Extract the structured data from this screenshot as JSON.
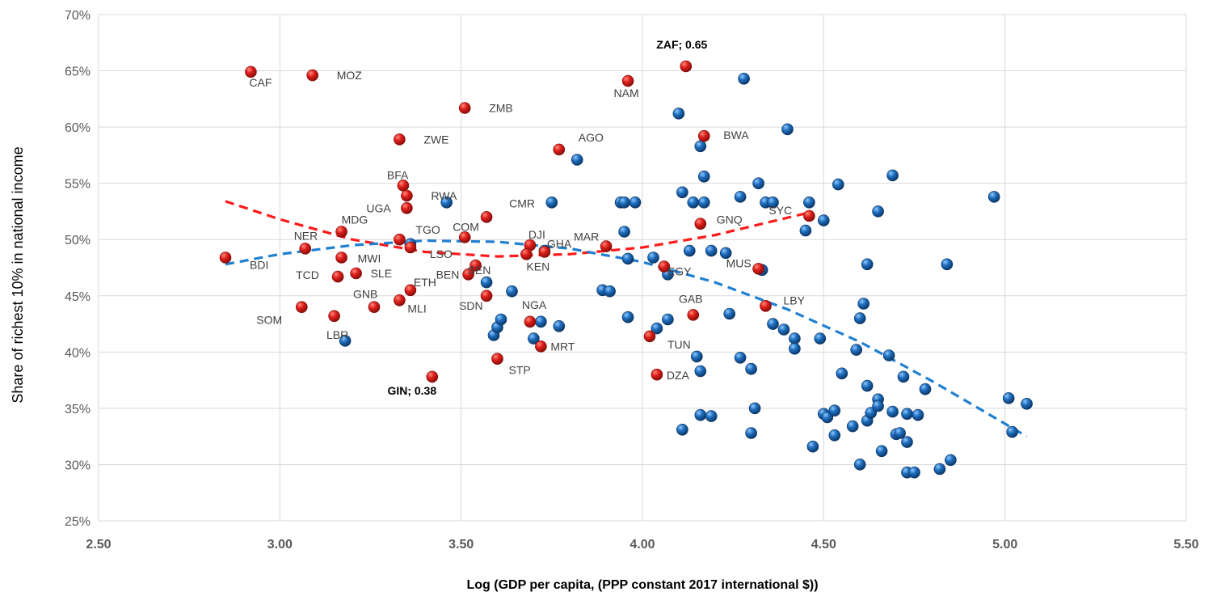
{
  "chart_data": {
    "type": "scatter",
    "title": "",
    "xlabel": "Log (GDP per capita, (PPP constant 2017 international $))",
    "ylabel": "Share of richest 10% in national income",
    "xlim": [
      2.5,
      5.5
    ],
    "ylim": [
      0.25,
      0.7
    ],
    "x_ticks": [
      "2.50",
      "3.00",
      "3.50",
      "4.00",
      "4.50",
      "5.00",
      "5.50"
    ],
    "y_ticks": [
      "25%",
      "30%",
      "35%",
      "40%",
      "45%",
      "50%",
      "55%",
      "60%",
      "65%",
      "70%"
    ],
    "grid": true,
    "colors": {
      "africa": "#e0201b",
      "others": "#1f6fbf",
      "africa_trend": "#ff1a1a",
      "others_trend": "#1f7fd0",
      "grid": "#d9d9d9"
    },
    "series": [
      {
        "key": "africa",
        "points": [
          {
            "label": "CAF",
            "x": 2.92,
            "y": 0.649
          },
          {
            "label": "MOZ",
            "x": 3.09,
            "y": 0.646
          },
          {
            "label": "ZMB",
            "x": 3.51,
            "y": 0.617
          },
          {
            "label": "NAM",
            "x": 3.96,
            "y": 0.641
          },
          {
            "label": "ZAF; 0.65",
            "x": 4.12,
            "y": 0.654
          },
          {
            "label": "ZWE",
            "x": 3.33,
            "y": 0.589
          },
          {
            "label": "AGO",
            "x": 3.77,
            "y": 0.58
          },
          {
            "label": "BWA",
            "x": 4.17,
            "y": 0.592
          },
          {
            "label": "BFA",
            "x": 3.34,
            "y": 0.548
          },
          {
            "label": "RWA",
            "x": 3.35,
            "y": 0.539
          },
          {
            "label": "UGA",
            "x": 3.35,
            "y": 0.528
          },
          {
            "label": "CMR",
            "x": 3.57,
            "y": 0.52
          },
          {
            "label": "MDG",
            "x": 3.17,
            "y": 0.507
          },
          {
            "label": "GNQ",
            "x": 4.16,
            "y": 0.514
          },
          {
            "label": "SYC",
            "x": 4.46,
            "y": 0.521
          },
          {
            "label": "NER",
            "x": 3.07,
            "y": 0.492
          },
          {
            "label": "TGO",
            "x": 3.33,
            "y": 0.5
          },
          {
            "label": "COM",
            "x": 3.51,
            "y": 0.502
          },
          {
            "label": "DJI",
            "x": 3.69,
            "y": 0.495
          },
          {
            "label": "MAR",
            "x": 3.9,
            "y": 0.494
          },
          {
            "label": "BDI",
            "x": 2.85,
            "y": 0.484
          },
          {
            "label": "MWI",
            "x": 3.17,
            "y": 0.484
          },
          {
            "label": "LSO",
            "x": 3.36,
            "y": 0.493
          },
          {
            "label": "GHA",
            "x": 3.73,
            "y": 0.489
          },
          {
            "label": "KEN",
            "x": 3.68,
            "y": 0.487
          },
          {
            "label": "SEN",
            "x": 3.54,
            "y": 0.477
          },
          {
            "label": "BEN",
            "x": 3.52,
            "y": 0.469
          },
          {
            "label": "TCD",
            "x": 3.16,
            "y": 0.467
          },
          {
            "label": "SLE",
            "x": 3.21,
            "y": 0.47
          },
          {
            "label": "ETH",
            "x": 3.36,
            "y": 0.455
          },
          {
            "label": "EGY",
            "x": 4.06,
            "y": 0.476
          },
          {
            "label": "MUS",
            "x": 4.32,
            "y": 0.474
          },
          {
            "label": "SDN",
            "x": 3.57,
            "y": 0.45
          },
          {
            "label": "SOM",
            "x": 3.06,
            "y": 0.44
          },
          {
            "label": "GNB",
            "x": 3.26,
            "y": 0.44
          },
          {
            "label": "MLI",
            "x": 3.33,
            "y": 0.446
          },
          {
            "label": "LBR",
            "x": 3.15,
            "y": 0.432
          },
          {
            "label": "NGA",
            "x": 3.69,
            "y": 0.427
          },
          {
            "label": "GAB",
            "x": 4.14,
            "y": 0.433
          },
          {
            "label": "LBY",
            "x": 4.34,
            "y": 0.441
          },
          {
            "label": "TUN",
            "x": 4.02,
            "y": 0.414
          },
          {
            "label": "MRT",
            "x": 3.72,
            "y": 0.405
          },
          {
            "label": "STP",
            "x": 3.6,
            "y": 0.394
          },
          {
            "label": "DZA",
            "x": 4.04,
            "y": 0.38
          },
          {
            "label": "GIN; 0.38",
            "x": 3.42,
            "y": 0.378
          }
        ]
      },
      {
        "key": "others",
        "points": [
          {
            "x": 3.18,
            "y": 0.41
          },
          {
            "x": 3.36,
            "y": 0.496
          },
          {
            "x": 3.46,
            "y": 0.533
          },
          {
            "x": 3.57,
            "y": 0.462
          },
          {
            "x": 3.59,
            "y": 0.415
          },
          {
            "x": 3.6,
            "y": 0.422
          },
          {
            "x": 3.61,
            "y": 0.429
          },
          {
            "x": 3.64,
            "y": 0.454
          },
          {
            "x": 3.7,
            "y": 0.412
          },
          {
            "x": 3.72,
            "y": 0.427
          },
          {
            "x": 3.73,
            "y": 0.49
          },
          {
            "x": 3.75,
            "y": 0.533
          },
          {
            "x": 3.77,
            "y": 0.423
          },
          {
            "x": 3.82,
            "y": 0.571
          },
          {
            "x": 3.89,
            "y": 0.455
          },
          {
            "x": 3.91,
            "y": 0.454
          },
          {
            "x": 3.94,
            "y": 0.533
          },
          {
            "x": 3.95,
            "y": 0.533
          },
          {
            "x": 3.95,
            "y": 0.507
          },
          {
            "x": 3.96,
            "y": 0.431
          },
          {
            "x": 3.96,
            "y": 0.483
          },
          {
            "x": 3.98,
            "y": 0.533
          },
          {
            "x": 4.03,
            "y": 0.484
          },
          {
            "x": 4.04,
            "y": 0.421
          },
          {
            "x": 4.07,
            "y": 0.429
          },
          {
            "x": 4.07,
            "y": 0.469
          },
          {
            "x": 4.1,
            "y": 0.612
          },
          {
            "x": 4.11,
            "y": 0.542
          },
          {
            "x": 4.11,
            "y": 0.331
          },
          {
            "x": 4.13,
            "y": 0.49
          },
          {
            "x": 4.14,
            "y": 0.533
          },
          {
            "x": 4.15,
            "y": 0.396
          },
          {
            "x": 4.16,
            "y": 0.383
          },
          {
            "x": 4.16,
            "y": 0.344
          },
          {
            "x": 4.16,
            "y": 0.583
          },
          {
            "x": 4.17,
            "y": 0.556
          },
          {
            "x": 4.17,
            "y": 0.533
          },
          {
            "x": 4.19,
            "y": 0.49
          },
          {
            "x": 4.19,
            "y": 0.343
          },
          {
            "x": 4.23,
            "y": 0.488
          },
          {
            "x": 4.24,
            "y": 0.434
          },
          {
            "x": 4.27,
            "y": 0.395
          },
          {
            "x": 4.27,
            "y": 0.538
          },
          {
            "x": 4.28,
            "y": 0.643
          },
          {
            "x": 4.3,
            "y": 0.385
          },
          {
            "x": 4.3,
            "y": 0.328
          },
          {
            "x": 4.31,
            "y": 0.35
          },
          {
            "x": 4.32,
            "y": 0.55
          },
          {
            "x": 4.33,
            "y": 0.473
          },
          {
            "x": 4.34,
            "y": 0.533
          },
          {
            "x": 4.36,
            "y": 0.425
          },
          {
            "x": 4.36,
            "y": 0.533
          },
          {
            "x": 4.39,
            "y": 0.42
          },
          {
            "x": 4.4,
            "y": 0.598
          },
          {
            "x": 4.42,
            "y": 0.412
          },
          {
            "x": 4.42,
            "y": 0.403
          },
          {
            "x": 4.45,
            "y": 0.508
          },
          {
            "x": 4.46,
            "y": 0.533
          },
          {
            "x": 4.47,
            "y": 0.316
          },
          {
            "x": 4.49,
            "y": 0.412
          },
          {
            "x": 4.5,
            "y": 0.517
          },
          {
            "x": 4.5,
            "y": 0.345
          },
          {
            "x": 4.51,
            "y": 0.342
          },
          {
            "x": 4.53,
            "y": 0.348
          },
          {
            "x": 4.53,
            "y": 0.326
          },
          {
            "x": 4.54,
            "y": 0.549
          },
          {
            "x": 4.55,
            "y": 0.381
          },
          {
            "x": 4.58,
            "y": 0.334
          },
          {
            "x": 4.59,
            "y": 0.402
          },
          {
            "x": 4.6,
            "y": 0.43
          },
          {
            "x": 4.6,
            "y": 0.3
          },
          {
            "x": 4.61,
            "y": 0.443
          },
          {
            "x": 4.62,
            "y": 0.339
          },
          {
            "x": 4.62,
            "y": 0.37
          },
          {
            "x": 4.62,
            "y": 0.478
          },
          {
            "x": 4.63,
            "y": 0.346
          },
          {
            "x": 4.65,
            "y": 0.358
          },
          {
            "x": 4.65,
            "y": 0.352
          },
          {
            "x": 4.65,
            "y": 0.525
          },
          {
            "x": 4.66,
            "y": 0.312
          },
          {
            "x": 4.68,
            "y": 0.397
          },
          {
            "x": 4.69,
            "y": 0.347
          },
          {
            "x": 4.69,
            "y": 0.557
          },
          {
            "x": 4.7,
            "y": 0.327
          },
          {
            "x": 4.71,
            "y": 0.328
          },
          {
            "x": 4.72,
            "y": 0.378
          },
          {
            "x": 4.73,
            "y": 0.32
          },
          {
            "x": 4.73,
            "y": 0.345
          },
          {
            "x": 4.73,
            "y": 0.293
          },
          {
            "x": 4.75,
            "y": 0.293
          },
          {
            "x": 4.76,
            "y": 0.344
          },
          {
            "x": 4.78,
            "y": 0.367
          },
          {
            "x": 4.82,
            "y": 0.296
          },
          {
            "x": 4.84,
            "y": 0.478
          },
          {
            "x": 4.85,
            "y": 0.304
          },
          {
            "x": 4.97,
            "y": 0.538
          },
          {
            "x": 5.01,
            "y": 0.359
          },
          {
            "x": 5.02,
            "y": 0.329
          },
          {
            "x": 5.06,
            "y": 0.354
          }
        ]
      }
    ],
    "trendlines": [
      {
        "key": "africa_trend",
        "x": [
          2.85,
          3.0,
          3.2,
          3.4,
          3.6,
          3.8,
          4.0,
          4.2,
          4.46
        ],
        "y": [
          0.534,
          0.518,
          0.5,
          0.489,
          0.485,
          0.487,
          0.493,
          0.504,
          0.524
        ]
      },
      {
        "key": "others_trend",
        "x": [
          2.85,
          3.0,
          3.2,
          3.4,
          3.6,
          3.8,
          4.0,
          4.2,
          4.4,
          4.6,
          4.8,
          5.06
        ],
        "y": [
          0.478,
          0.487,
          0.495,
          0.499,
          0.498,
          0.492,
          0.48,
          0.462,
          0.438,
          0.409,
          0.374,
          0.325
        ]
      }
    ]
  }
}
